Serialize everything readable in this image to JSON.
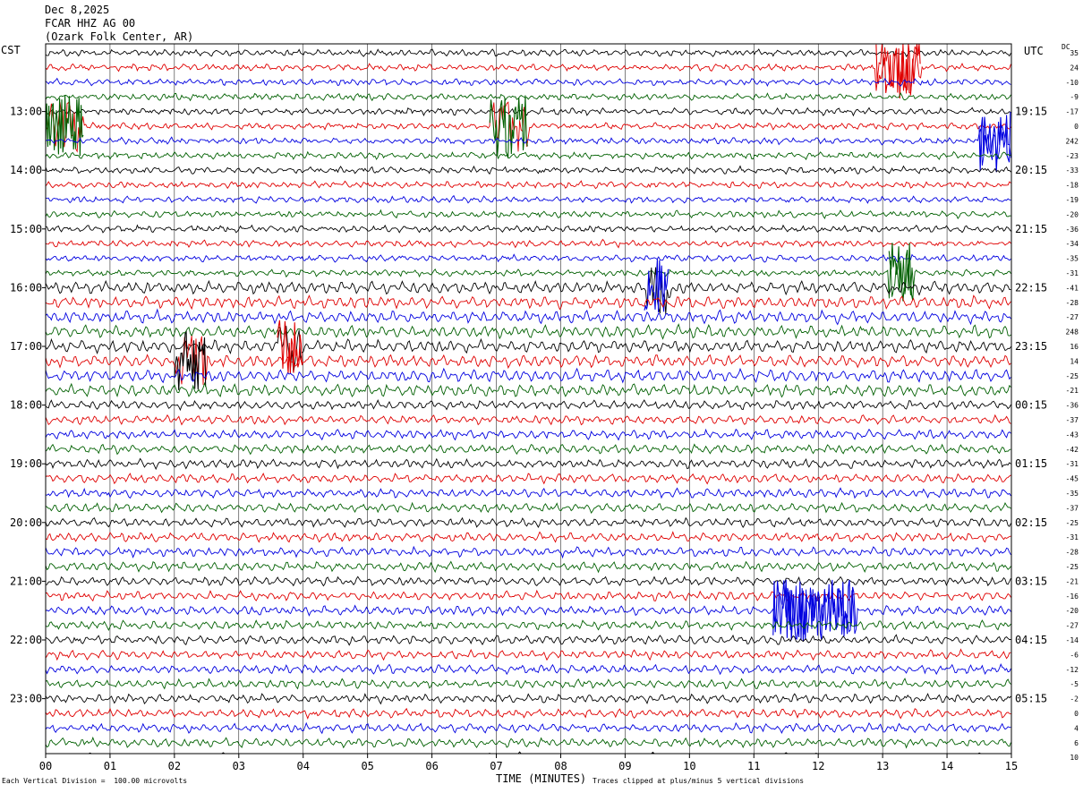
{
  "header": {
    "date": "Dec 8,2025",
    "station": "FCAR HHZ AG 00",
    "location": "(Ozark Folk Center, AR)"
  },
  "left_tz": "CST",
  "right_tz": "UTC",
  "dc_label": "DC",
  "footer": {
    "scale_note": "Each Vertical Division =  100.00 microvolts",
    "xlabel": "TIME (MINUTES)",
    "clip_note": "Traces clipped at plus/minus 5 vertical divisions"
  },
  "chart_data": {
    "type": "line",
    "title": "FCAR HHZ AG 00",
    "xlabel": "TIME (MINUTES)",
    "xlim": [
      0,
      15
    ],
    "x_ticks": [
      "00",
      "01",
      "02",
      "03",
      "04",
      "05",
      "06",
      "07",
      "08",
      "09",
      "10",
      "11",
      "12",
      "13",
      "14",
      "15"
    ],
    "left_time_labels": [
      "13:00",
      "14:00",
      "15:00",
      "16:00",
      "17:00",
      "18:00",
      "19:00",
      "20:00",
      "21:00",
      "22:00",
      "23:00"
    ],
    "right_time_labels": [
      "19:15",
      "20:15",
      "21:15",
      "22:15",
      "23:15",
      "00:15",
      "01:15",
      "02:15",
      "03:15",
      "04:15",
      "05:15"
    ],
    "trace_colors": [
      "#000000",
      "#e00000",
      "#0000e0",
      "#006000"
    ],
    "dc_offsets": [
      "35",
      "24",
      "-10",
      "-9",
      "-17",
      "0",
      "242",
      "-23",
      "-33",
      "-18",
      "-19",
      "-20",
      "-36",
      "-34",
      "-35",
      "-31",
      "-41",
      "-28",
      "-27",
      "248",
      "16",
      "14",
      "-25",
      "-21",
      "-36",
      "-37",
      "-43",
      "-42",
      "-31",
      "-45",
      "-35",
      "-37",
      "-25",
      "-31",
      "-28",
      "-25",
      "-21",
      "-16",
      "-20",
      "-27",
      "-14",
      "-6",
      "-12",
      "-5",
      "-2",
      "0",
      "4",
      "6",
      "10"
    ],
    "events": [
      {
        "trace": 1,
        "start_min": 12.9,
        "end_min": 13.6,
        "color": "#e00000"
      },
      {
        "trace": 5,
        "start_min": 0.0,
        "end_min": 0.6,
        "color": "#006000"
      },
      {
        "trace": 5,
        "start_min": 6.9,
        "end_min": 7.5,
        "color": "#006000"
      },
      {
        "trace": 6,
        "start_min": 14.5,
        "end_min": 15.0,
        "color": "#0000e0"
      },
      {
        "trace": 15,
        "start_min": 13.1,
        "end_min": 13.5,
        "color": "#006000"
      },
      {
        "trace": 16,
        "start_min": 9.3,
        "end_min": 9.7,
        "color": "#0000e0"
      },
      {
        "trace": 20,
        "start_min": 3.6,
        "end_min": 4.0,
        "color": "#e00000"
      },
      {
        "trace": 21,
        "start_min": 2.0,
        "end_min": 2.5,
        "color": "#000000"
      },
      {
        "trace": 38,
        "start_min": 11.3,
        "end_min": 12.6,
        "color": "#0000e0"
      }
    ]
  }
}
